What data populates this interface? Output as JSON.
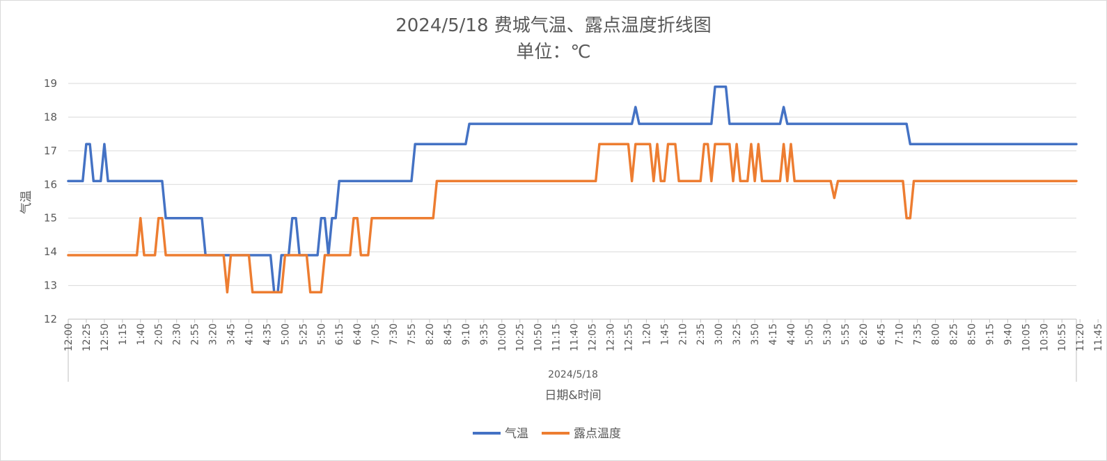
{
  "chart_data": {
    "type": "line",
    "title": "2024/5/18 费城气温、露点温度折线图",
    "subtitle": "单位：℃",
    "xlabel": "日期&时间",
    "x_group_label": "2024/5/18",
    "ylabel": "气温",
    "ylim": [
      12,
      19
    ],
    "yticks": [
      12,
      13,
      14,
      15,
      16,
      17,
      18,
      19
    ],
    "grid": true,
    "legend_position": "bottom",
    "x": [
      "12:00",
      "12:25",
      "12:50",
      "1:15",
      "1:40",
      "2:05",
      "2:30",
      "2:55",
      "3:20",
      "3:45",
      "4:10",
      "4:35",
      "5:00",
      "5:25",
      "5:50",
      "6:15",
      "6:40",
      "7:05",
      "7:30",
      "7:55",
      "8:20",
      "8:45",
      "9:10",
      "9:35",
      "10:00",
      "10:25",
      "10:50",
      "11:15",
      "11:40",
      "12:05",
      "12:30",
      "12:55",
      "1:20",
      "1:45",
      "2:10",
      "2:35",
      "3:00",
      "3:25",
      "3:50",
      "4:15",
      "4:40",
      "5:05",
      "5:30",
      "5:55",
      "6:20",
      "6:45",
      "7:10",
      "7:35",
      "8:00",
      "8:25",
      "8:50",
      "9:15",
      "9:40",
      "10:05",
      "10:30",
      "10:55",
      "11:20",
      "11:45"
    ],
    "series": [
      {
        "name": "气温",
        "color": "#4472c4",
        "points": [
          [
            0,
            16.1
          ],
          [
            4,
            16.1
          ],
          [
            5,
            17.2
          ],
          [
            6,
            17.2
          ],
          [
            7,
            16.1
          ],
          [
            9,
            16.1
          ],
          [
            10,
            17.2
          ],
          [
            11,
            16.1
          ],
          [
            26,
            16.1
          ],
          [
            27,
            15
          ],
          [
            37,
            15
          ],
          [
            38,
            13.9
          ],
          [
            56,
            13.9
          ],
          [
            57,
            12.8
          ],
          [
            58,
            12.8
          ],
          [
            59,
            13.9
          ],
          [
            61,
            13.9
          ],
          [
            62,
            15
          ],
          [
            63,
            15
          ],
          [
            64,
            13.9
          ],
          [
            69,
            13.9
          ],
          [
            70,
            15
          ],
          [
            71,
            15
          ],
          [
            72,
            13.9
          ],
          [
            73,
            15
          ],
          [
            74,
            15
          ],
          [
            75,
            16.1
          ],
          [
            95,
            16.1
          ],
          [
            96,
            17.2
          ],
          [
            110,
            17.2
          ],
          [
            111,
            17.8
          ],
          [
            156,
            17.8
          ],
          [
            157,
            18.3
          ],
          [
            158,
            17.8
          ],
          [
            178,
            17.8
          ],
          [
            179,
            18.9
          ],
          [
            182,
            18.9
          ],
          [
            183,
            17.8
          ],
          [
            197,
            17.8
          ],
          [
            198,
            18.3
          ],
          [
            199,
            17.8
          ],
          [
            232,
            17.8
          ],
          [
            233,
            17.2
          ],
          [
            279,
            17.2
          ]
        ]
      },
      {
        "name": "露点温度",
        "color": "#ed7d31",
        "points": [
          [
            0,
            13.9
          ],
          [
            19,
            13.9
          ],
          [
            20,
            15
          ],
          [
            21,
            13.9
          ],
          [
            24,
            13.9
          ],
          [
            25,
            15
          ],
          [
            26,
            15
          ],
          [
            27,
            13.9
          ],
          [
            43,
            13.9
          ],
          [
            44,
            12.8
          ],
          [
            45,
            13.9
          ],
          [
            50,
            13.9
          ],
          [
            51,
            12.8
          ],
          [
            59,
            12.8
          ],
          [
            60,
            13.9
          ],
          [
            66,
            13.9
          ],
          [
            67,
            12.8
          ],
          [
            70,
            12.8
          ],
          [
            71,
            13.9
          ],
          [
            78,
            13.9
          ],
          [
            79,
            15
          ],
          [
            80,
            15
          ],
          [
            81,
            13.9
          ],
          [
            83,
            13.9
          ],
          [
            84,
            15
          ],
          [
            101,
            15
          ],
          [
            102,
            16.1
          ],
          [
            146,
            16.1
          ],
          [
            147,
            17.2
          ],
          [
            155,
            17.2
          ],
          [
            156,
            16.1
          ],
          [
            157,
            17.2
          ],
          [
            161,
            17.2
          ],
          [
            162,
            16.1
          ],
          [
            163,
            17.2
          ],
          [
            164,
            16.1
          ],
          [
            165,
            16.1
          ],
          [
            166,
            17.2
          ],
          [
            168,
            17.2
          ],
          [
            169,
            16.1
          ],
          [
            175,
            16.1
          ],
          [
            176,
            17.2
          ],
          [
            177,
            17.2
          ],
          [
            178,
            16.1
          ],
          [
            179,
            17.2
          ],
          [
            183,
            17.2
          ],
          [
            184,
            16.1
          ],
          [
            185,
            17.2
          ],
          [
            186,
            16.1
          ],
          [
            188,
            16.1
          ],
          [
            189,
            17.2
          ],
          [
            190,
            16.1
          ],
          [
            191,
            17.2
          ],
          [
            192,
            16.1
          ],
          [
            197,
            16.1
          ],
          [
            198,
            17.2
          ],
          [
            199,
            16.1
          ],
          [
            200,
            17.2
          ],
          [
            201,
            16.1
          ],
          [
            211,
            16.1
          ],
          [
            212,
            15.6
          ],
          [
            213,
            16.1
          ],
          [
            231,
            16.1
          ],
          [
            232,
            15
          ],
          [
            233,
            15
          ],
          [
            234,
            16.1
          ],
          [
            279,
            16.1
          ]
        ]
      }
    ]
  }
}
